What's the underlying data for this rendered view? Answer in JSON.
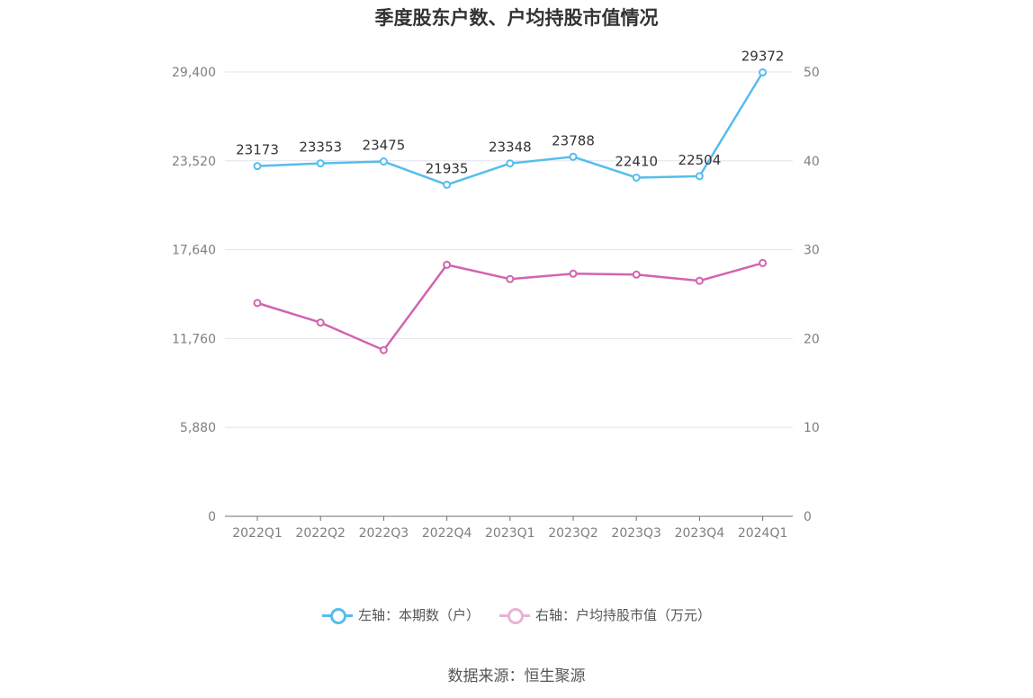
{
  "chart_data": {
    "type": "line",
    "title": "季度股东户数、户均持股市值情况",
    "categories": [
      "2022Q1",
      "2022Q2",
      "2022Q3",
      "2022Q4",
      "2023Q1",
      "2023Q2",
      "2023Q3",
      "2023Q4",
      "2024Q1"
    ],
    "left_axis": {
      "ticks": [
        "0",
        "5,880",
        "11,760",
        "17,640",
        "23,520",
        "29,400"
      ],
      "ylim": [
        0,
        29400
      ]
    },
    "right_axis": {
      "ticks": [
        "0",
        "10",
        "20",
        "30",
        "40",
        "50"
      ],
      "ylim": [
        0,
        50
      ]
    },
    "series": [
      {
        "name": "左轴：本期数（户）",
        "axis": "left",
        "color": "#56bdec",
        "values": [
          23173,
          23353,
          23475,
          21935,
          23348,
          23788,
          22410,
          22504,
          29372
        ],
        "labels": [
          "23173",
          "23353",
          "23475",
          "21935",
          "23348",
          "23788",
          "22410",
          "22504",
          "29372"
        ]
      },
      {
        "name": "右轴：户均持股市值（万元）",
        "axis": "right",
        "color": "#d264b0",
        "values": [
          24.0,
          21.8,
          18.7,
          28.3,
          26.7,
          27.3,
          27.2,
          26.5,
          28.5
        ]
      }
    ],
    "grid": true,
    "legend_position": "bottom"
  },
  "source": "数据来源：恒生聚源"
}
